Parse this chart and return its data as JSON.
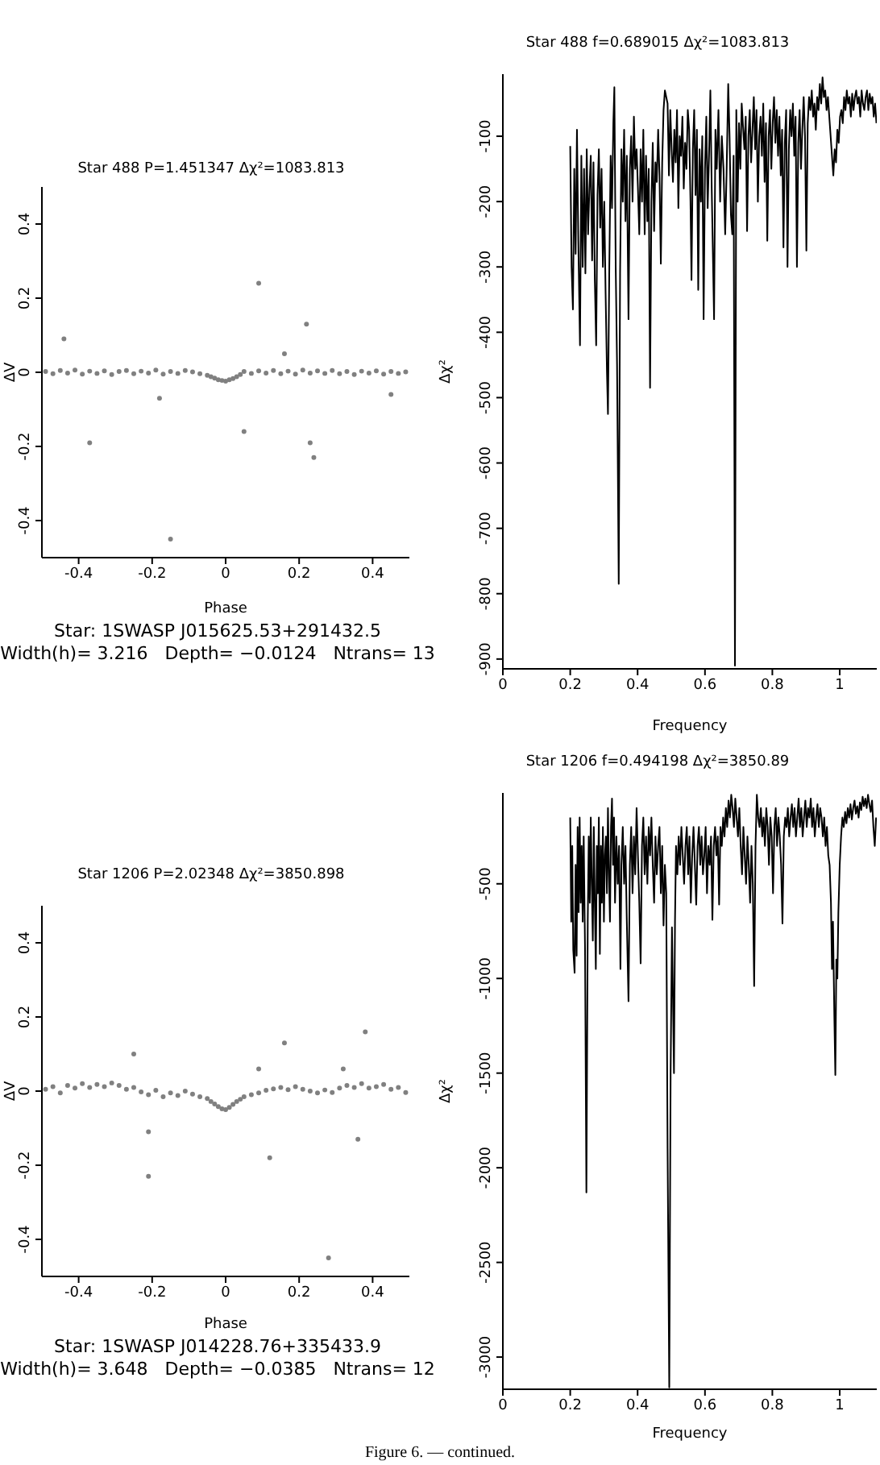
{
  "chart_data": [
    {
      "type": "scatter",
      "title": "Star 488 P=1.451347 Δχ²=1083.813",
      "xlabel": "Phase",
      "ylabel": "ΔV",
      "marker": "circle",
      "xlim": [
        -0.5,
        0.5
      ],
      "xticks": [
        -0.4,
        -0.2,
        0,
        0.2,
        0.4
      ],
      "ylim": [
        -0.5,
        0.5
      ],
      "yticks": [
        -0.4,
        -0.2,
        0,
        0.2,
        0.4
      ],
      "annotations": [
        "Star: 1SWASP J015625.53+291432.5",
        "Width(h)= 3.216   Depth= −0.0124   Ntrans= 13"
      ],
      "series": [
        {
          "color": "#808080",
          "x": [
            -0.49,
            -0.47,
            -0.45,
            -0.43,
            -0.41,
            -0.39,
            -0.37,
            -0.35,
            -0.33,
            -0.31,
            -0.29,
            -0.27,
            -0.25,
            -0.23,
            -0.21,
            -0.19,
            -0.17,
            -0.15,
            -0.13,
            -0.11,
            -0.09,
            -0.07,
            -0.05,
            -0.04,
            -0.03,
            -0.02,
            -0.01,
            0,
            0.01,
            0.02,
            0.03,
            0.04,
            0.05,
            0.07,
            0.09,
            0.11,
            0.13,
            0.15,
            0.17,
            0.19,
            0.21,
            0.23,
            0.25,
            0.27,
            0.29,
            0.31,
            0.33,
            0.35,
            0.37,
            0.39,
            0.41,
            0.43,
            0.45,
            0.47,
            0.49,
            0.16,
            0.23,
            0.24,
            0.45,
            0.22,
            -0.37,
            0.09,
            -0.15,
            -0.44,
            0.05,
            -0.18
          ],
          "values": [
            0.002,
            -0.004,
            0.005,
            -0.002,
            0.006,
            -0.005,
            0.003,
            -0.003,
            0.004,
            -0.006,
            0.002,
            0.005,
            -0.004,
            0.003,
            -0.002,
            0.006,
            -0.005,
            0.002,
            -0.003,
            0.005,
            0.001,
            -0.004,
            -0.008,
            -0.012,
            -0.016,
            -0.02,
            -0.022,
            -0.024,
            -0.02,
            -0.017,
            -0.012,
            -0.006,
            0.002,
            -0.003,
            0.004,
            -0.002,
            0.005,
            -0.004,
            0.003,
            -0.005,
            0.006,
            -0.002,
            0.004,
            -0.003,
            0.005,
            -0.004,
            0.002,
            -0.006,
            0.003,
            -0.002,
            0.004,
            -0.005,
            0.002,
            -0.003,
            0.001,
            0.05,
            -0.19,
            -0.23,
            -0.06,
            0.13,
            -0.19,
            0.24,
            -0.45,
            0.09,
            -0.16,
            -0.07
          ]
        }
      ]
    },
    {
      "type": "line",
      "title": "Star 488 f=0.689015 Δχ²=1083.813",
      "xlabel": "Frequency",
      "ylabel": "Δχ²",
      "xlim": [
        0,
        1.11
      ],
      "xticks": [
        0,
        0.2,
        0.4,
        0.6,
        0.8,
        1
      ],
      "ylim": [
        -915,
        -5
      ],
      "yticks": [
        -900,
        -800,
        -700,
        -600,
        -500,
        -400,
        -300,
        -200,
        -100
      ],
      "series": [
        {
          "color": "#000000",
          "x": [
            0.2,
            0.204,
            0.208,
            0.212,
            0.216,
            0.22,
            0.224,
            0.229,
            0.233,
            0.237,
            0.241,
            0.245,
            0.249,
            0.253,
            0.257,
            0.261,
            0.265,
            0.269,
            0.273,
            0.277,
            0.281,
            0.285,
            0.289,
            0.293,
            0.297,
            0.301,
            0.305,
            0.309,
            0.312,
            0.316,
            0.32,
            0.324,
            0.328,
            0.331,
            0.335,
            0.339,
            0.344,
            0.348,
            0.352,
            0.356,
            0.36,
            0.364,
            0.368,
            0.373,
            0.377,
            0.381,
            0.385,
            0.389,
            0.393,
            0.397,
            0.401,
            0.405,
            0.409,
            0.413,
            0.417,
            0.421,
            0.425,
            0.429,
            0.433,
            0.437,
            0.441,
            0.445,
            0.449,
            0.453,
            0.457,
            0.461,
            0.465,
            0.469,
            0.473,
            0.477,
            0.481,
            0.485,
            0.489,
            0.493,
            0.497,
            0.501,
            0.505,
            0.509,
            0.513,
            0.517,
            0.521,
            0.525,
            0.529,
            0.533,
            0.537,
            0.541,
            0.545,
            0.549,
            0.553,
            0.557,
            0.56,
            0.564,
            0.568,
            0.572,
            0.576,
            0.58,
            0.584,
            0.588,
            0.592,
            0.596,
            0.6,
            0.604,
            0.608,
            0.612,
            0.616,
            0.62,
            0.627,
            0.631,
            0.635,
            0.64,
            0.645,
            0.65,
            0.655,
            0.66,
            0.664,
            0.669,
            0.673,
            0.677,
            0.681,
            0.685,
            0.689,
            0.693,
            0.697,
            0.701,
            0.705,
            0.709,
            0.717,
            0.721,
            0.725,
            0.729,
            0.733,
            0.737,
            0.741,
            0.745,
            0.749,
            0.753,
            0.757,
            0.761,
            0.765,
            0.769,
            0.773,
            0.777,
            0.781,
            0.785,
            0.789,
            0.793,
            0.797,
            0.801,
            0.805,
            0.809,
            0.813,
            0.817,
            0.821,
            0.825,
            0.829,
            0.833,
            0.837,
            0.841,
            0.845,
            0.849,
            0.853,
            0.857,
            0.861,
            0.865,
            0.869,
            0.873,
            0.877,
            0.881,
            0.885,
            0.889,
            0.893,
            0.897,
            0.901,
            0.905,
            0.909,
            0.913,
            0.917,
            0.921,
            0.925,
            0.929,
            0.933,
            0.937,
            0.941,
            0.945,
            0.949,
            0.953,
            0.957,
            0.961,
            0.965,
            0.969,
            0.973,
            0.977,
            0.981,
            0.985,
            0.989,
            0.993,
            0.997,
            1.001,
            1.005,
            1.009,
            1.013,
            1.017,
            1.021,
            1.025,
            1.029,
            1.033,
            1.037,
            1.041,
            1.045,
            1.049,
            1.053,
            1.057,
            1.061,
            1.065,
            1.069,
            1.073,
            1.077,
            1.081,
            1.085,
            1.089,
            1.093,
            1.097,
            1.101,
            1.105,
            1.109
          ],
          "values": [
            -115,
            -300,
            -365,
            -150,
            -280,
            -90,
            -260,
            -420,
            -130,
            -300,
            -150,
            -310,
            -120,
            -250,
            -180,
            -130,
            -290,
            -140,
            -320,
            -420,
            -190,
            -120,
            -240,
            -150,
            -300,
            -200,
            -340,
            -460,
            -525,
            -300,
            -130,
            -210,
            -80,
            -25,
            -300,
            -450,
            -785,
            -310,
            -120,
            -200,
            -90,
            -230,
            -130,
            -380,
            -150,
            -100,
            -200,
            -70,
            -150,
            -120,
            -180,
            -250,
            -120,
            -200,
            -90,
            -250,
            -130,
            -230,
            -150,
            -485,
            -200,
            -110,
            -245,
            -140,
            -170,
            -90,
            -160,
            -295,
            -140,
            -60,
            -30,
            -40,
            -50,
            -160,
            -60,
            -120,
            -170,
            -90,
            -140,
            -60,
            -210,
            -100,
            -130,
            -70,
            -180,
            -110,
            -150,
            -60,
            -90,
            -200,
            -320,
            -120,
            -60,
            -190,
            -90,
            -335,
            -120,
            -200,
            -100,
            -380,
            -150,
            -70,
            -210,
            -130,
            -30,
            -180,
            -380,
            -90,
            -150,
            -60,
            -200,
            -100,
            -150,
            -250,
            -160,
            -20,
            -100,
            -220,
            -250,
            -130,
            -910,
            -60,
            -200,
            -80,
            -150,
            -50,
            -120,
            -70,
            -245,
            -100,
            -60,
            -140,
            -90,
            -40,
            -120,
            -60,
            -200,
            -100,
            -70,
            -130,
            -50,
            -170,
            -80,
            -260,
            -100,
            -60,
            -150,
            -80,
            -40,
            -110,
            -60,
            -130,
            -70,
            -160,
            -90,
            -270,
            -110,
            -60,
            -300,
            -120,
            -60,
            -100,
            -50,
            -130,
            -70,
            -300,
            -110,
            -60,
            -150,
            -90,
            -40,
            -100,
            -275,
            -80,
            -40,
            -60,
            -30,
            -70,
            -50,
            -90,
            -40,
            -60,
            -20,
            -50,
            -10,
            -40,
            -30,
            -60,
            -40,
            -70,
            -100,
            -130,
            -160,
            -120,
            -140,
            -90,
            -110,
            -70,
            -60,
            -80,
            -40,
            -60,
            -30,
            -50,
            -40,
            -70,
            -35,
            -60,
            -40,
            -30,
            -50,
            -40,
            -70,
            -30,
            -50,
            -60,
            -40,
            -30,
            -60,
            -35,
            -50,
            -40,
            -70,
            -50,
            -80
          ]
        }
      ]
    },
    {
      "type": "scatter",
      "title": "Star 1206 P=2.02348 Δχ²=3850.898",
      "xlabel": "Phase",
      "ylabel": "ΔV",
      "marker": "circle",
      "xlim": [
        -0.5,
        0.5
      ],
      "xticks": [
        -0.4,
        -0.2,
        0,
        0.2,
        0.4
      ],
      "ylim": [
        -0.5,
        0.5
      ],
      "yticks": [
        -0.4,
        -0.2,
        0,
        0.2,
        0.4
      ],
      "annotations": [
        "Star: 1SWASP J014228.76+335433.9",
        "Width(h)= 3.648   Depth= −0.0385   Ntrans= 12"
      ],
      "series": [
        {
          "color": "#808080",
          "x": [
            -0.49,
            -0.47,
            -0.45,
            -0.43,
            -0.41,
            -0.39,
            -0.37,
            -0.35,
            -0.33,
            -0.31,
            -0.29,
            -0.27,
            -0.25,
            -0.23,
            -0.21,
            -0.19,
            -0.17,
            -0.15,
            -0.13,
            -0.11,
            -0.09,
            -0.07,
            -0.05,
            -0.04,
            -0.03,
            -0.02,
            -0.01,
            0,
            0.01,
            0.02,
            0.03,
            0.04,
            0.05,
            0.07,
            0.09,
            0.11,
            0.13,
            0.15,
            0.17,
            0.19,
            0.21,
            0.23,
            0.25,
            0.27,
            0.29,
            0.31,
            0.33,
            0.35,
            0.37,
            0.39,
            0.41,
            0.43,
            0.45,
            0.47,
            0.49,
            -0.25,
            0.16,
            0.38,
            -0.21,
            0.12,
            0.36,
            0.28,
            -0.21,
            0.09,
            0.32
          ],
          "values": [
            0.005,
            0.012,
            -0.005,
            0.015,
            0.008,
            0.02,
            0.01,
            0.018,
            0.012,
            0.022,
            0.015,
            0.005,
            0.01,
            -0.002,
            -0.01,
            0.002,
            -0.015,
            -0.005,
            -0.012,
            0,
            -0.008,
            -0.015,
            -0.02,
            -0.028,
            -0.035,
            -0.042,
            -0.048,
            -0.05,
            -0.044,
            -0.036,
            -0.028,
            -0.022,
            -0.015,
            -0.01,
            -0.005,
            0.002,
            0.006,
            0.01,
            0.004,
            0.012,
            0.005,
            0,
            -0.005,
            0.003,
            -0.004,
            0.008,
            0.015,
            0.01,
            0.02,
            0.008,
            0.012,
            0.018,
            0.005,
            0.01,
            -0.004,
            0.1,
            0.13,
            0.16,
            -0.11,
            -0.18,
            -0.13,
            -0.45,
            -0.23,
            0.06,
            0.06
          ]
        }
      ]
    },
    {
      "type": "line",
      "title": "Star 1206 f=0.494198 Δχ²=3850.89",
      "xlabel": "Frequency",
      "ylabel": "Δχ²",
      "xlim": [
        0,
        1.11
      ],
      "xticks": [
        0,
        0.2,
        0.4,
        0.6,
        0.8,
        1
      ],
      "ylim": [
        -3170,
        -20
      ],
      "yticks": [
        -3000,
        -2500,
        -2000,
        -1500,
        -1000,
        -500
      ],
      "annotations": [
        "Figure 6. — continued."
      ],
      "series": [
        {
          "color": "#000000",
          "x": [
            0.2,
            0.203,
            0.206,
            0.209,
            0.213,
            0.216,
            0.219,
            0.222,
            0.225,
            0.228,
            0.231,
            0.234,
            0.237,
            0.24,
            0.244,
            0.248,
            0.252,
            0.255,
            0.258,
            0.261,
            0.264,
            0.267,
            0.27,
            0.273,
            0.276,
            0.279,
            0.282,
            0.285,
            0.288,
            0.291,
            0.294,
            0.297,
            0.3,
            0.303,
            0.306,
            0.309,
            0.312,
            0.315,
            0.318,
            0.321,
            0.324,
            0.327,
            0.33,
            0.333,
            0.337,
            0.341,
            0.345,
            0.349,
            0.352,
            0.356,
            0.36,
            0.364,
            0.368,
            0.373,
            0.377,
            0.381,
            0.385,
            0.389,
            0.393,
            0.397,
            0.401,
            0.405,
            0.409,
            0.413,
            0.417,
            0.421,
            0.425,
            0.429,
            0.433,
            0.437,
            0.441,
            0.445,
            0.449,
            0.453,
            0.457,
            0.461,
            0.465,
            0.469,
            0.473,
            0.477,
            0.481,
            0.485,
            0.489,
            0.494,
            0.498,
            0.502,
            0.505,
            0.508,
            0.511,
            0.514,
            0.518,
            0.522,
            0.526,
            0.53,
            0.534,
            0.538,
            0.542,
            0.546,
            0.55,
            0.554,
            0.558,
            0.562,
            0.566,
            0.57,
            0.574,
            0.578,
            0.582,
            0.586,
            0.59,
            0.594,
            0.598,
            0.602,
            0.606,
            0.61,
            0.614,
            0.618,
            0.622,
            0.626,
            0.63,
            0.634,
            0.638,
            0.642,
            0.646,
            0.65,
            0.654,
            0.658,
            0.662,
            0.666,
            0.67,
            0.674,
            0.678,
            0.682,
            0.686,
            0.69,
            0.694,
            0.698,
            0.702,
            0.706,
            0.71,
            0.714,
            0.718,
            0.722,
            0.726,
            0.73,
            0.734,
            0.738,
            0.742,
            0.746,
            0.75,
            0.754,
            0.758,
            0.762,
            0.766,
            0.77,
            0.774,
            0.778,
            0.782,
            0.786,
            0.79,
            0.794,
            0.798,
            0.802,
            0.806,
            0.81,
            0.814,
            0.818,
            0.822,
            0.826,
            0.83,
            0.834,
            0.838,
            0.842,
            0.846,
            0.85,
            0.854,
            0.858,
            0.862,
            0.866,
            0.87,
            0.874,
            0.878,
            0.882,
            0.886,
            0.89,
            0.894,
            0.898,
            0.902,
            0.906,
            0.91,
            0.914,
            0.918,
            0.922,
            0.926,
            0.93,
            0.934,
            0.938,
            0.942,
            0.946,
            0.95,
            0.954,
            0.958,
            0.962,
            0.966,
            0.97,
            0.974,
            0.977,
            0.98,
            0.984,
            0.987,
            0.99,
            0.993,
            0.996,
            1,
            1.004,
            1.008,
            1.012,
            1.016,
            1.02,
            1.024,
            1.028,
            1.032,
            1.036,
            1.04,
            1.044,
            1.048,
            1.052,
            1.056,
            1.06,
            1.064,
            1.068,
            1.072,
            1.076,
            1.08,
            1.084,
            1.088,
            1.092,
            1.096,
            1.1,
            1.104,
            1.108
          ],
          "values": [
            -150,
            -700,
            -300,
            -850,
            -970,
            -400,
            -880,
            -200,
            -650,
            -150,
            -600,
            -300,
            -700,
            -250,
            -850,
            -2130,
            -700,
            -250,
            -600,
            -150,
            -500,
            -800,
            -200,
            -600,
            -950,
            -300,
            -550,
            -150,
            -870,
            -300,
            -600,
            -200,
            -700,
            -350,
            -250,
            -550,
            -100,
            -450,
            -700,
            -200,
            -50,
            -400,
            -150,
            -600,
            -250,
            -500,
            -300,
            -950,
            -400,
            -200,
            -500,
            -300,
            -700,
            -1120,
            -400,
            -200,
            -550,
            -250,
            -450,
            -100,
            -350,
            -600,
            -920,
            -300,
            -150,
            -450,
            -250,
            -500,
            -200,
            -350,
            -150,
            -400,
            -600,
            -250,
            -450,
            -300,
            -200,
            -550,
            -300,
            -720,
            -400,
            -550,
            -1900,
            -3160,
            -1500,
            -730,
            -1100,
            -1500,
            -700,
            -300,
            -450,
            -250,
            -400,
            -200,
            -350,
            -500,
            -300,
            -200,
            -450,
            -250,
            -600,
            -350,
            -200,
            -400,
            -610,
            -300,
            -200,
            -400,
            -250,
            -450,
            -350,
            -200,
            -550,
            -300,
            -400,
            -250,
            -690,
            -300,
            -200,
            -350,
            -250,
            -610,
            -200,
            -300,
            -150,
            -250,
            -100,
            -200,
            -60,
            -150,
            -30,
            -100,
            -200,
            -50,
            -150,
            -250,
            -100,
            -300,
            -450,
            -200,
            -350,
            -500,
            -250,
            -400,
            -600,
            -300,
            -500,
            -1040,
            -300,
            -30,
            -150,
            -200,
            -100,
            -250,
            -150,
            -300,
            -100,
            -200,
            -400,
            -150,
            -250,
            -550,
            -200,
            -100,
            -300,
            -150,
            -250,
            -400,
            -710,
            -250,
            -150,
            -200,
            -100,
            -250,
            -150,
            -80,
            -200,
            -100,
            -250,
            -150,
            -50,
            -200,
            -100,
            -250,
            -150,
            -60,
            -200,
            -100,
            -150,
            -50,
            -200,
            -100,
            -250,
            -150,
            -80,
            -200,
            -100,
            -150,
            -250,
            -150,
            -300,
            -200,
            -350,
            -400,
            -600,
            -950,
            -700,
            -1200,
            -1510,
            -900,
            -1000,
            -650,
            -400,
            -250,
            -150,
            -200,
            -120,
            -180,
            -100,
            -150,
            -80,
            -160,
            -100,
            -60,
            -130,
            -90,
            -150,
            -70,
            -110,
            -40,
            -90,
            -50,
            -100,
            -30,
            -80,
            -120,
            -60,
            -200,
            -300,
            -150
          ]
        }
      ]
    }
  ]
}
